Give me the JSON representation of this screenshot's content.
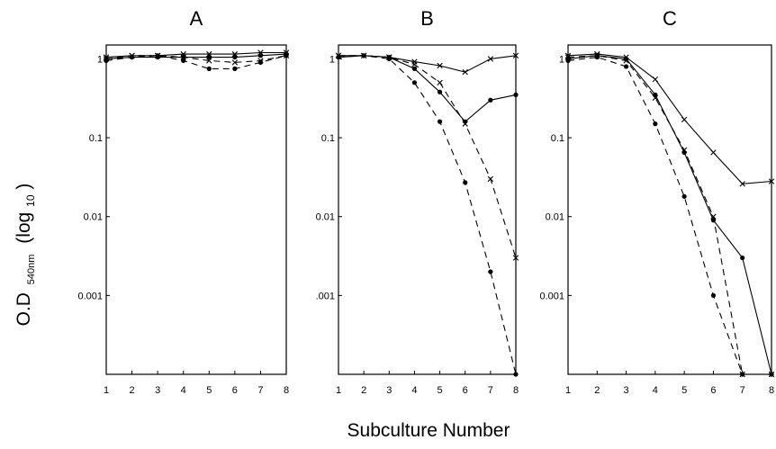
{
  "figure": {
    "ylabel_main": "O.D",
    "ylabel_sub": "540nm",
    "ylabel_log": "(log",
    "ylabel_base": "10",
    "ylabel_close": ")",
    "xlabel": "Subculture Number"
  },
  "chart_data": [
    {
      "type": "line",
      "title": "A",
      "x": [
        1,
        2,
        3,
        4,
        5,
        6,
        7,
        8
      ],
      "x_tick_labels": [
        "1",
        "2",
        "3",
        "4",
        "5",
        "6",
        "7",
        "8"
      ],
      "y_tick_values": [
        1,
        0.1,
        0.01,
        0.001
      ],
      "y_tick_labels": [
        "1",
        "0.1",
        "0.01",
        "0.001"
      ],
      "yscale": "log",
      "ylim": [
        0.0001,
        1.5
      ],
      "xlim": [
        1,
        8
      ],
      "series": [
        {
          "style": "solid",
          "marker": "x",
          "values": [
            1.05,
            1.1,
            1.1,
            1.15,
            1.15,
            1.15,
            1.2,
            1.2
          ]
        },
        {
          "style": "solid",
          "marker": "dot",
          "values": [
            1.0,
            1.05,
            1.05,
            1.05,
            1.05,
            1.05,
            1.1,
            1.15
          ]
        },
        {
          "style": "dashed",
          "marker": "x",
          "values": [
            1.0,
            1.1,
            1.1,
            1.05,
            0.95,
            0.9,
            0.95,
            1.1
          ]
        },
        {
          "style": "dashed",
          "marker": "dot",
          "values": [
            0.95,
            1.05,
            1.1,
            0.95,
            0.75,
            0.75,
            0.9,
            1.1
          ]
        }
      ]
    },
    {
      "type": "line",
      "title": "B",
      "x": [
        1,
        2,
        3,
        4,
        5,
        6,
        7,
        8
      ],
      "x_tick_labels": [
        "1",
        "2",
        "3",
        "4",
        "5",
        "6",
        "7",
        "8"
      ],
      "y_tick_values": [
        1,
        0.1,
        0.01,
        0.001
      ],
      "y_tick_labels": [
        "1",
        "0.1",
        "0.01",
        ".001"
      ],
      "yscale": "log",
      "ylim": [
        0.0001,
        1.5
      ],
      "xlim": [
        1,
        8
      ],
      "series": [
        {
          "style": "solid",
          "marker": "x",
          "values": [
            1.1,
            1.1,
            1.05,
            0.92,
            0.82,
            0.68,
            1.0,
            1.1
          ]
        },
        {
          "style": "solid",
          "marker": "dot",
          "values": [
            1.05,
            1.1,
            1.05,
            0.75,
            0.38,
            0.16,
            0.3,
            0.35
          ]
        },
        {
          "style": "dashed",
          "marker": "x",
          "values": [
            1.1,
            1.1,
            1.05,
            0.85,
            0.5,
            0.15,
            0.03,
            0.003
          ]
        },
        {
          "style": "dashed",
          "marker": "dot",
          "values": [
            1.05,
            1.1,
            1.0,
            0.5,
            0.16,
            0.027,
            0.002,
            0.0001
          ]
        }
      ]
    },
    {
      "type": "line",
      "title": "C",
      "x": [
        1,
        2,
        3,
        4,
        5,
        6,
        7,
        8
      ],
      "x_tick_labels": [
        "1",
        "2",
        "3",
        "4",
        "5",
        "6",
        "7",
        "8"
      ],
      "y_tick_values": [
        1,
        0.1,
        0.01,
        0.001
      ],
      "y_tick_labels": [
        "1",
        "0.1",
        "0.01",
        "0.001"
      ],
      "yscale": "log",
      "ylim": [
        0.0001,
        1.5
      ],
      "xlim": [
        1,
        8
      ],
      "series": [
        {
          "style": "solid",
          "marker": "x",
          "values": [
            1.1,
            1.15,
            1.05,
            0.55,
            0.17,
            0.065,
            0.026,
            0.028
          ]
        },
        {
          "style": "solid",
          "marker": "dot",
          "values": [
            1.0,
            1.1,
            1.0,
            0.35,
            0.065,
            0.009,
            0.003,
            0.0001
          ]
        },
        {
          "style": "dashed",
          "marker": "x",
          "values": [
            1.05,
            1.1,
            0.95,
            0.32,
            0.07,
            0.01,
            0.0001,
            0.0001
          ]
        },
        {
          "style": "dashed",
          "marker": "dot",
          "values": [
            0.95,
            1.05,
            0.8,
            0.15,
            0.018,
            0.001,
            0.0001,
            0.0001
          ]
        }
      ]
    }
  ]
}
